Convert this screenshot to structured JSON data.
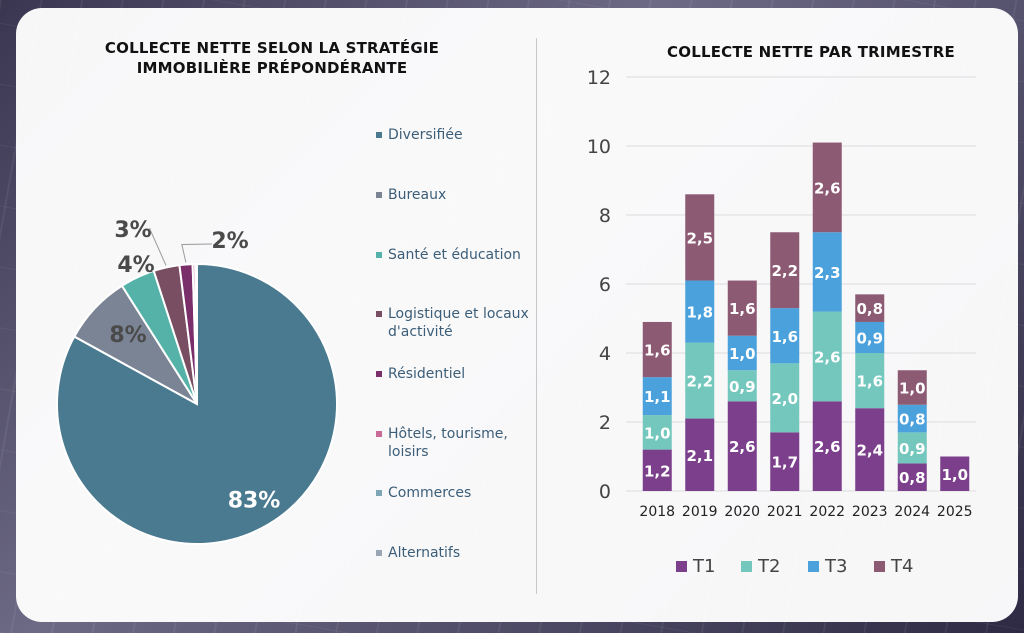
{
  "chart_data": [
    {
      "type": "pie",
      "title": "COLLECTE NETTE SELON LA STRATÉGIE IMMOBILIÈRE PRÉPONDÉRANTE",
      "slices": [
        {
          "label": "Diversifiée",
          "value": 83,
          "display": "83%",
          "color": "#4a7a90"
        },
        {
          "label": "Bureaux",
          "value": 8,
          "display": "8%",
          "color": "#7a8494"
        },
        {
          "label": "Santé et éducation",
          "value": 4,
          "display": "4%",
          "color": "#55b2a8"
        },
        {
          "label": "Logistique et locaux d'activité",
          "value": 3,
          "display": "3%",
          "color": "#7a4e62"
        },
        {
          "label": "Résidentiel",
          "value": 1.5,
          "display": "2%",
          "color": "#7a2e6a"
        },
        {
          "label": "Hôtels, tourisme, loisirs",
          "value": 0.3,
          "display": "",
          "color": "#c96b97"
        },
        {
          "label": "Commerces",
          "value": 0.1,
          "display": "",
          "color": "#7fa6b4"
        },
        {
          "label": "Alternatifs",
          "value": 0.1,
          "display": "",
          "color": "#9aa5b6"
        }
      ],
      "legend_position": "right"
    },
    {
      "type": "bar",
      "stacked": true,
      "title": "COLLECTE NETTE PAR TRIMESTRE",
      "categories": [
        "2018",
        "2019",
        "2020",
        "2021",
        "2022",
        "2023",
        "2024",
        "2025"
      ],
      "series": [
        {
          "name": "T1",
          "color": "#7b3f8c",
          "values": [
            1.2,
            2.1,
            2.6,
            1.7,
            2.6,
            2.4,
            0.8,
            1.0
          ],
          "labels": [
            "1,2",
            "2,1",
            "2,6",
            "1,7",
            "2,6",
            "2,4",
            "0,8",
            "1,0"
          ]
        },
        {
          "name": "T2",
          "color": "#74c7bd",
          "values": [
            1.0,
            2.2,
            0.9,
            2.0,
            2.6,
            1.6,
            0.9,
            null
          ],
          "labels": [
            "1,0",
            "2,2",
            "0,9",
            "2,0",
            "2,6",
            "1,6",
            "0,9",
            ""
          ]
        },
        {
          "name": "T3",
          "color": "#4aa1dc",
          "values": [
            1.1,
            1.8,
            1.0,
            1.6,
            2.3,
            0.9,
            0.8,
            null
          ],
          "labels": [
            "1,1",
            "1,8",
            "1,0",
            "1,6",
            "2,3",
            "0,9",
            "0,8",
            ""
          ]
        },
        {
          "name": "T4",
          "color": "#8c5a73",
          "values": [
            1.6,
            2.5,
            1.6,
            2.2,
            2.6,
            0.8,
            1.0,
            null
          ],
          "labels": [
            "1,6",
            "2,5",
            "1,6",
            "2,2",
            "2,6",
            "0,8",
            "1,0",
            ""
          ]
        }
      ],
      "ylim": [
        0,
        12
      ],
      "yticks": [
        "0",
        "2",
        "4",
        "6",
        "8",
        "10",
        "12"
      ],
      "grid": true,
      "legend_position": "bottom"
    }
  ]
}
